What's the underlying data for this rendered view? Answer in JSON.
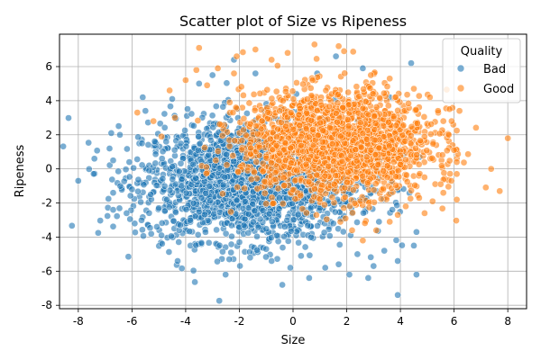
{
  "chart_data": {
    "type": "scatter",
    "title": "Scatter plot of Size vs Ripeness",
    "xlabel": "Size",
    "ylabel": "Ripeness",
    "xlim": [
      -8.7,
      8.7
    ],
    "ylim": [
      -8.2,
      7.9
    ],
    "xticks": [
      -8,
      -6,
      -4,
      -2,
      0,
      2,
      4,
      6,
      8
    ],
    "yticks": [
      -8,
      -6,
      -4,
      -2,
      0,
      2,
      4,
      6
    ],
    "grid": true,
    "legend": {
      "title": "Quality",
      "position": "top-right"
    },
    "series": [
      {
        "name": "Bad",
        "color": "#1f77b4",
        "points": [
          [
            -8.0,
            -0.7
          ],
          [
            -7.4,
            0.6
          ],
          [
            -6.7,
            0.5
          ],
          [
            -6.7,
            -1.4
          ],
          [
            -6.7,
            -2.4
          ],
          [
            -6.2,
            -2.6
          ],
          [
            -6.1,
            0.4
          ],
          [
            -6.0,
            -1.2
          ],
          [
            -5.9,
            -3.2
          ],
          [
            -5.6,
            4.2
          ],
          [
            -5.5,
            3.4
          ],
          [
            -5.3,
            -1.5
          ],
          [
            -5.0,
            -2.3
          ],
          [
            -4.9,
            -3.9
          ],
          [
            -4.7,
            -1.8
          ],
          [
            -4.5,
            4.1
          ],
          [
            -4.3,
            -5.4
          ],
          [
            -4.2,
            -3.3
          ],
          [
            -3.5,
            5.0
          ],
          [
            -3.0,
            5.5
          ],
          [
            -2.5,
            -3.8
          ],
          [
            -2.2,
            6.4
          ],
          [
            -2.0,
            -4.3
          ],
          [
            -1.6,
            -5.2
          ],
          [
            -1.4,
            5.6
          ],
          [
            -1.0,
            -4.7
          ],
          [
            -0.8,
            -5.4
          ],
          [
            -0.4,
            -6.8
          ],
          [
            -0.1,
            -5.8
          ],
          [
            0.3,
            -5.1
          ],
          [
            0.6,
            -6.4
          ],
          [
            0.9,
            5.6
          ],
          [
            1.2,
            -5.8
          ],
          [
            1.6,
            6.6
          ],
          [
            1.7,
            -5.6
          ],
          [
            2.1,
            -6.2
          ],
          [
            2.4,
            -5.0
          ],
          [
            2.6,
            5.9
          ],
          [
            2.8,
            -6.4
          ],
          [
            3.0,
            -5.7
          ],
          [
            3.4,
            -4.8
          ],
          [
            3.6,
            4.2
          ],
          [
            3.9,
            -5.4
          ],
          [
            3.9,
            -7.4
          ],
          [
            4.4,
            6.2
          ],
          [
            4.5,
            -4.5
          ],
          [
            4.6,
            -3.7
          ],
          [
            4.6,
            -6.2
          ],
          [
            4.1,
            0.8
          ],
          [
            3.7,
            -2.4
          ],
          [
            3.2,
            -3.1
          ],
          [
            2.2,
            -2.6
          ],
          [
            1.5,
            -3.2
          ]
        ],
        "cluster": {
          "center": [
            -1.6,
            -0.7
          ],
          "spread": [
            2.0,
            1.75
          ],
          "count": 2100
        }
      },
      {
        "name": "Good",
        "color": "#ff7f0e",
        "points": [
          [
            -5.8,
            3.3
          ],
          [
            -5.2,
            2.8
          ],
          [
            -4.9,
            1.9
          ],
          [
            -4.6,
            4.6
          ],
          [
            -4.0,
            5.2
          ],
          [
            -3.6,
            5.8
          ],
          [
            -3.5,
            7.1
          ],
          [
            -2.8,
            5.9
          ],
          [
            -2.1,
            6.6
          ],
          [
            -1.4,
            7.0
          ],
          [
            -0.8,
            6.4
          ],
          [
            -0.2,
            6.8
          ],
          [
            0.8,
            7.3
          ],
          [
            1.7,
            7.2
          ],
          [
            1.9,
            6.9
          ],
          [
            2.9,
            5.5
          ],
          [
            3.6,
            5.3
          ],
          [
            4.5,
            4.7
          ],
          [
            5.1,
            4.2
          ],
          [
            5.4,
            3.4
          ],
          [
            5.6,
            2.8
          ],
          [
            5.8,
            2.0
          ],
          [
            6.0,
            1.1
          ],
          [
            6.1,
            0.4
          ],
          [
            5.9,
            -0.7
          ],
          [
            5.6,
            -1.4
          ],
          [
            5.2,
            -1.9
          ],
          [
            4.9,
            -2.6
          ],
          [
            6.1,
            -0.3
          ],
          [
            6.2,
            3.4
          ],
          [
            6.1,
            -1.8
          ],
          [
            7.7,
            -1.3
          ],
          [
            8.0,
            1.8
          ],
          [
            4.2,
            -2.2
          ],
          [
            3.6,
            -3.1
          ],
          [
            3.1,
            -3.6
          ],
          [
            2.6,
            -4.2
          ],
          [
            2.2,
            -3.6
          ],
          [
            3.9,
            -2.7
          ],
          [
            5.5,
            -0.9
          ],
          [
            4.7,
            -1.7
          ],
          [
            -4.4,
            3.0
          ],
          [
            -3.2,
            4.9
          ],
          [
            -2.2,
            5.6
          ]
        ],
        "cluster": {
          "center": [
            1.6,
            1.5
          ],
          "spread": [
            1.75,
            1.5
          ],
          "count": 2000
        }
      }
    ]
  }
}
